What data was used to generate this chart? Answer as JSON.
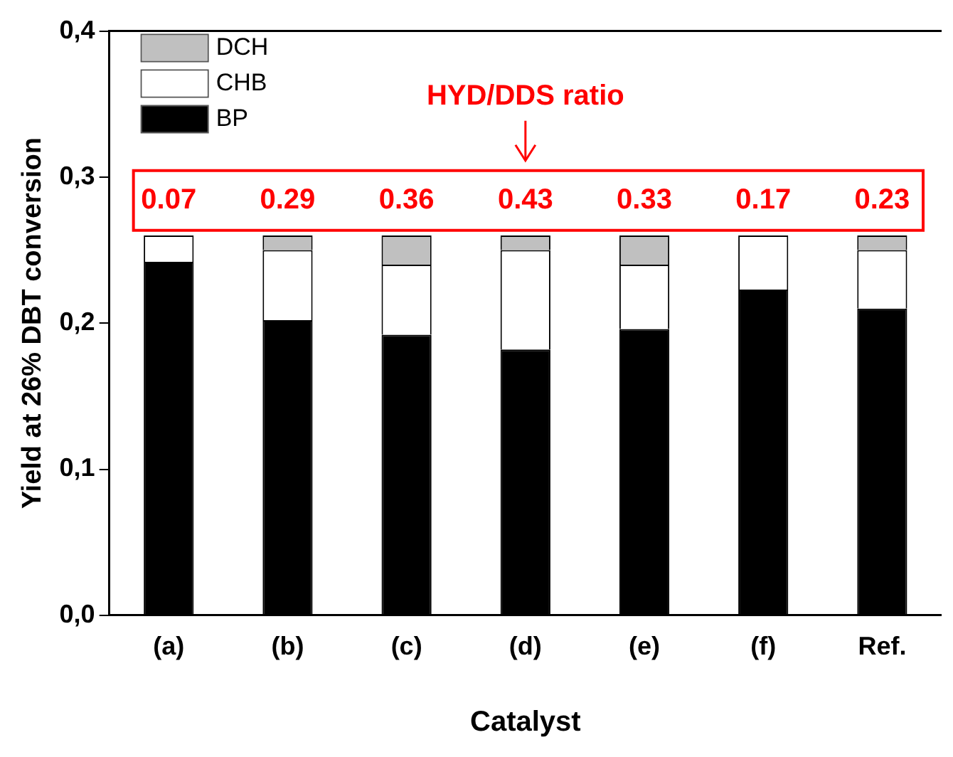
{
  "chart_data": {
    "type": "bar",
    "stacked": true,
    "xlabel": "Catalyst",
    "ylabel": "Yield at 26% DBT conversion",
    "categories": [
      "(a)",
      "(b)",
      "(c)",
      "(d)",
      "(e)",
      "(f)",
      "Ref."
    ],
    "series": [
      {
        "name": "BP",
        "color": "#000000",
        "values": [
          0.242,
          0.202,
          0.192,
          0.182,
          0.196,
          0.223,
          0.21
        ]
      },
      {
        "name": "CHB",
        "color": "#ffffff",
        "values": [
          0.018,
          0.048,
          0.048,
          0.068,
          0.044,
          0.037,
          0.04
        ]
      },
      {
        "name": "DCH",
        "color": "#c0c0c0",
        "values": [
          0,
          0.01,
          0.02,
          0.01,
          0.02,
          0,
          0.01
        ]
      }
    ],
    "ylim": [
      0,
      0.4
    ],
    "yticks": [
      {
        "value": 0,
        "label": "0,0"
      },
      {
        "value": 0.1,
        "label": "0,1"
      },
      {
        "value": 0.2,
        "label": "0,2"
      },
      {
        "value": 0.3,
        "label": "0,3"
      },
      {
        "value": 0.4,
        "label": "0,4"
      }
    ],
    "grid": false,
    "legend": "top left",
    "annotations": [
      "HYD/DDS ratio",
      "0.07",
      "0.29",
      "0.36",
      "0.43",
      "0.33",
      "0.17",
      "0.23"
    ]
  }
}
